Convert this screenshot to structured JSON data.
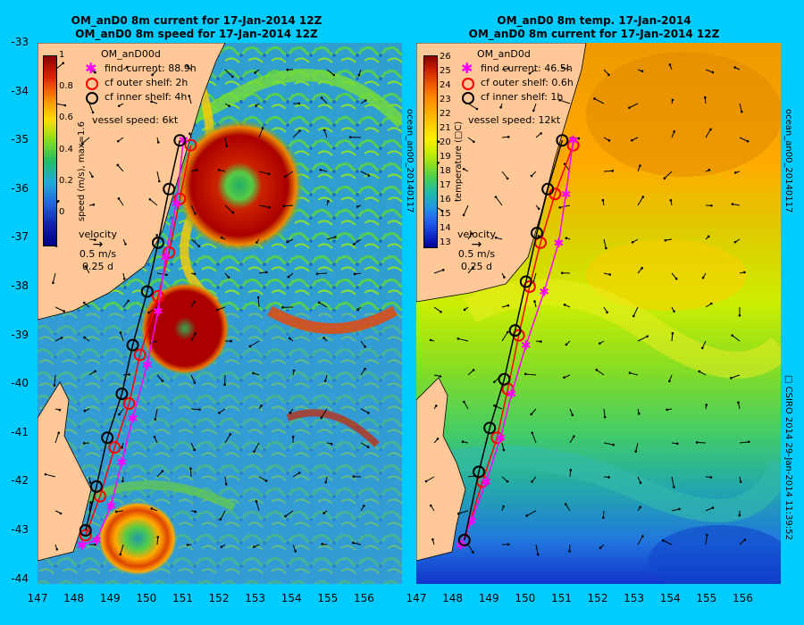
{
  "left": {
    "title1": "OM_anD0 8m current for 17-Jan-2014 12Z",
    "title2": "OM_anD0 8m speed for 17-Jan-2014 12Z",
    "legend_title": "OM_anD00d",
    "legend": [
      "find current: 88.9h",
      "cf outer shelf: 2h",
      "cf inner shelf: 4h"
    ],
    "vessel": "vessel speed: 6kt",
    "colorbar_title": "speed (m/s), max=1.6",
    "colorbar_ticks": [
      "1",
      "0.8",
      "0.6",
      "0.4",
      "0.2",
      "0"
    ],
    "velocity": [
      "velocity",
      "0.5 m/s",
      "0.25 d"
    ],
    "side": "ocean_an00_20140117"
  },
  "right": {
    "title1": "OM_anD0 8m temp. 17-Jan-2014",
    "title2": "OM_anD0 8m current for 17-Jan-2014 12Z",
    "legend_title": "OM_anD0d",
    "legend": [
      "find current: 46.5h",
      "cf outer shelf: 0.6h",
      "cf inner shelf: 1h"
    ],
    "vessel": "vessel speed: 12kt",
    "colorbar_title": "temperature (□C)",
    "colorbar_ticks": [
      "26",
      "25",
      "24",
      "23",
      "22",
      "21",
      "20",
      "19",
      "18",
      "17",
      "16",
      "15",
      "14",
      "13"
    ],
    "velocity": [
      "velocity",
      "0.5 m/s",
      "0.25 d"
    ],
    "side": "ocean_an00_20140117",
    "credit": "□ CSIRO 2014   29-Jan-2014 11:39:52"
  },
  "y_ticks": [
    "-33",
    "-34",
    "-35",
    "-36",
    "-37",
    "-38",
    "-39",
    "-40",
    "-41",
    "-42",
    "-43",
    "-44"
  ],
  "x_ticks": [
    "147",
    "148",
    "149",
    "150",
    "151",
    "152",
    "153",
    "154",
    "155",
    "156"
  ],
  "colors": {
    "background": "#00ccff",
    "land": "#ffc896",
    "find": "#ff00ff",
    "outer": "#ff0000",
    "inner": "#000000"
  },
  "tracks": {
    "left": {
      "find": [
        [
          151.0,
          -35.0
        ],
        [
          150.8,
          -36.3
        ],
        [
          150.5,
          -37.4
        ],
        [
          150.3,
          -38.5
        ],
        [
          150.0,
          -39.6
        ],
        [
          149.6,
          -40.7
        ],
        [
          149.3,
          -41.6
        ],
        [
          149.0,
          -42.5
        ],
        [
          148.6,
          -43.2
        ],
        [
          148.2,
          -43.3
        ]
      ],
      "outer": [
        [
          151.2,
          -35.1
        ],
        [
          150.9,
          -36.2
        ],
        [
          150.6,
          -37.3
        ],
        [
          150.3,
          -38.2
        ],
        [
          149.8,
          -39.4
        ],
        [
          149.5,
          -40.4
        ],
        [
          149.1,
          -41.3
        ],
        [
          148.7,
          -42.3
        ],
        [
          148.3,
          -43.1
        ]
      ],
      "inner": [
        [
          150.9,
          -35.0
        ],
        [
          150.6,
          -36.0
        ],
        [
          150.3,
          -37.1
        ],
        [
          150.0,
          -38.1
        ],
        [
          149.6,
          -39.2
        ],
        [
          149.3,
          -40.2
        ],
        [
          148.9,
          -41.1
        ],
        [
          148.6,
          -42.1
        ],
        [
          148.3,
          -43.0
        ]
      ]
    },
    "right": {
      "find": [
        [
          151.3,
          -35.0
        ],
        [
          151.1,
          -36.1
        ],
        [
          150.9,
          -37.1
        ],
        [
          150.5,
          -38.1
        ],
        [
          150.0,
          -39.2
        ],
        [
          149.6,
          -40.2
        ],
        [
          149.3,
          -41.1
        ],
        [
          148.9,
          -42.0
        ],
        [
          148.5,
          -42.8
        ],
        [
          148.2,
          -43.3
        ]
      ],
      "outer": [
        [
          151.3,
          -35.1
        ],
        [
          150.8,
          -36.1
        ],
        [
          150.4,
          -37.1
        ],
        [
          150.1,
          -38.0
        ],
        [
          149.8,
          -39.0
        ],
        [
          149.5,
          -40.1
        ],
        [
          149.2,
          -41.1
        ],
        [
          148.8,
          -42.0
        ],
        [
          148.3,
          -43.2
        ]
      ],
      "inner": [
        [
          151.0,
          -35.0
        ],
        [
          150.6,
          -36.0
        ],
        [
          150.3,
          -36.9
        ],
        [
          150.0,
          -37.9
        ],
        [
          149.7,
          -38.9
        ],
        [
          149.4,
          -39.9
        ],
        [
          149.0,
          -40.9
        ],
        [
          148.7,
          -41.8
        ],
        [
          148.3,
          -43.2
        ]
      ]
    }
  }
}
